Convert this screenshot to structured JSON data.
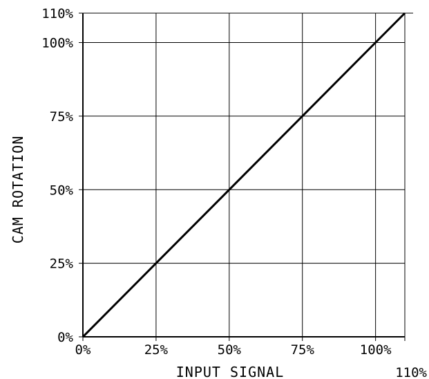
{
  "chart_data": {
    "type": "line",
    "xlabel": "INPUT SIGNAL",
    "ylabel": "CAM ROTATION",
    "xlim": [
      0,
      110
    ],
    "ylim": [
      0,
      110
    ],
    "grid": true,
    "x_ticks": [
      {
        "value": 0,
        "label": "0%"
      },
      {
        "value": 25,
        "label": "25%"
      },
      {
        "value": 50,
        "label": "50%"
      },
      {
        "value": 75,
        "label": "75%"
      },
      {
        "value": 100,
        "label": "100%"
      },
      {
        "value": 110,
        "label": "110%"
      }
    ],
    "y_ticks": [
      {
        "value": 0,
        "label": "0%"
      },
      {
        "value": 25,
        "label": "25%"
      },
      {
        "value": 50,
        "label": "50%"
      },
      {
        "value": 75,
        "label": "75%"
      },
      {
        "value": 100,
        "label": "100%"
      },
      {
        "value": 110,
        "label": "110%"
      }
    ],
    "series": [
      {
        "x": [
          0,
          25,
          50,
          75,
          100,
          110
        ],
        "values": [
          0,
          25,
          50,
          75,
          100,
          110
        ]
      }
    ]
  }
}
